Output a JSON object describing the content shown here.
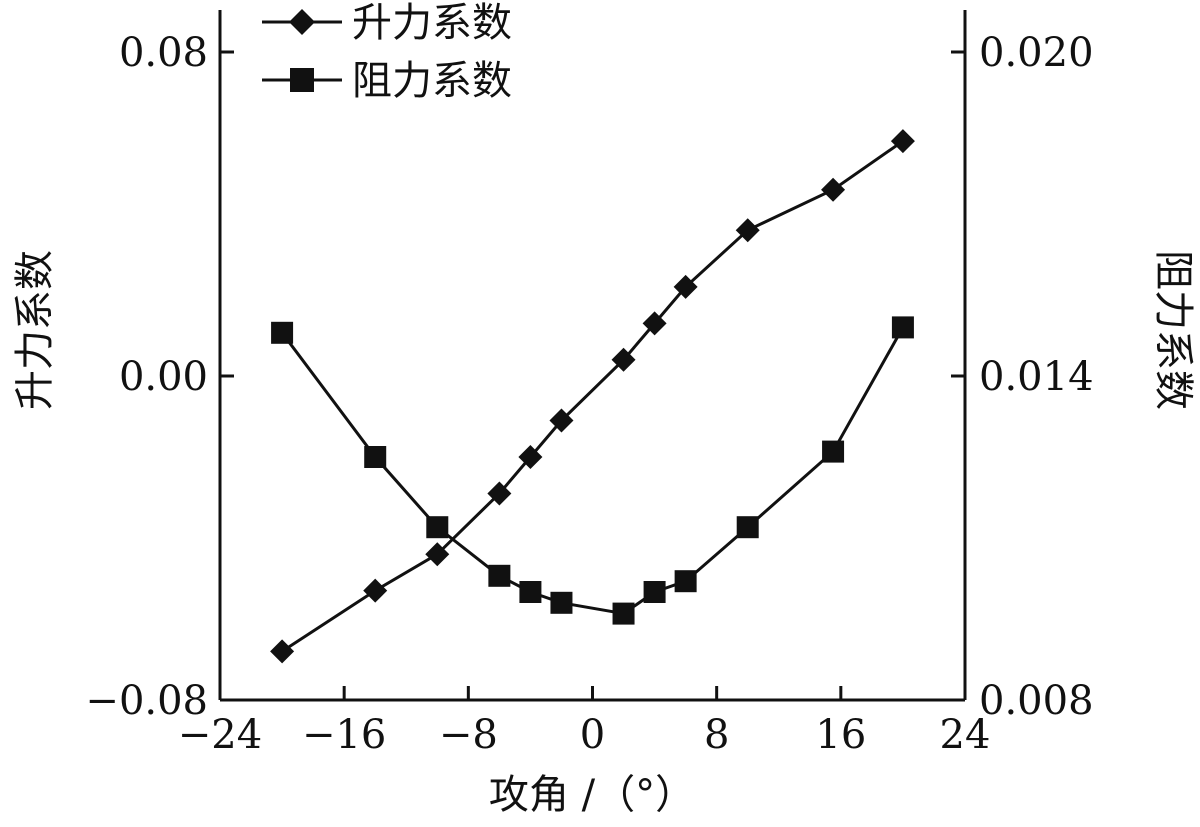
{
  "chart_data": {
    "type": "line",
    "xlabel": "攻角 /（°）",
    "ylabel_left": "升力系数",
    "ylabel_right": "阻力系数",
    "xlim": [
      -24,
      24
    ],
    "ylim_left": [
      -0.08,
      0.08
    ],
    "ylim_right": [
      0.008,
      0.02
    ],
    "xticks": [
      -24,
      -16,
      -8,
      0,
      8,
      16,
      24
    ],
    "xtick_labels": [
      "−24",
      "−16",
      "−8",
      "0",
      "8",
      "16",
      "24"
    ],
    "yticks_left": [
      -0.08,
      0.0,
      0.08
    ],
    "ytick_labels_left": [
      "−0.08",
      "0.00",
      "0.08"
    ],
    "yticks_right": [
      0.008,
      0.014,
      0.02
    ],
    "ytick_labels_right": [
      "0.008",
      "0.014",
      "0.020"
    ],
    "grid": false,
    "legend_position": "top-left",
    "series": [
      {
        "name": "升力系数",
        "axis": "left",
        "marker": "diamond",
        "color": "#111111",
        "x": [
          -20,
          -14,
          -10,
          -6,
          -4,
          -2,
          2,
          4,
          6,
          10,
          15.5,
          20
        ],
        "y": [
          -0.068,
          -0.053,
          -0.044,
          -0.029,
          -0.02,
          -0.011,
          0.004,
          0.013,
          0.022,
          0.036,
          0.046,
          0.058
        ]
      },
      {
        "name": "阻力系数",
        "axis": "right",
        "marker": "square",
        "color": "#111111",
        "x": [
          -20,
          -14,
          -10,
          -6,
          -4,
          -2,
          2,
          4,
          6,
          10,
          15.5,
          20
        ],
        "y": [
          0.0148,
          0.0125,
          0.0112,
          0.0103,
          0.01,
          0.0098,
          0.0096,
          0.01,
          0.0102,
          0.0112,
          0.0126,
          0.0149
        ]
      }
    ]
  }
}
